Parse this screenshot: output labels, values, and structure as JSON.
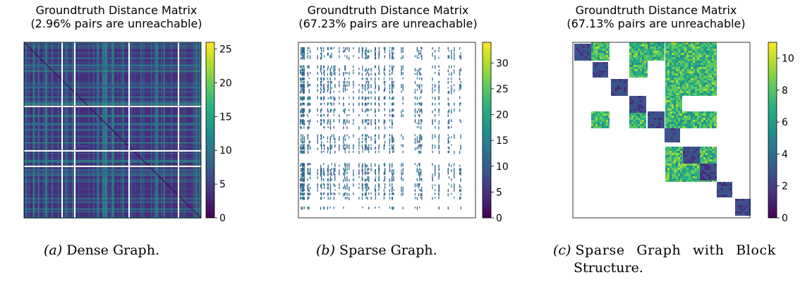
{
  "colormap": [
    "#440154",
    "#472d7b",
    "#3b528b",
    "#2c728e",
    "#21918c",
    "#28ae80",
    "#5ec962",
    "#addc30",
    "#fde725"
  ],
  "panels": [
    {
      "title_line1": "Groundtruth Distance Matrix",
      "title_line2": "(2.96% pairs are unreachable)",
      "caption_letter": "(a)",
      "caption_text": "Dense Graph.",
      "caption_text2": ""
    },
    {
      "title_line1": "Groundtruth Distance Matrix",
      "title_line2": "(67.23% pairs are unreachable)",
      "caption_letter": "(b)",
      "caption_text": "Sparse Graph.",
      "caption_text2": ""
    },
    {
      "title_line1": "Groundtruth Distance Matrix",
      "title_line2": "(67.13% pairs are unreachable)",
      "caption_letter": "(c)",
      "caption_text": "Sparse Graph with Block",
      "caption_text2": "Structure."
    }
  ],
  "chart_data": [
    {
      "type": "heatmap",
      "title": "Groundtruth Distance Matrix (2.96% pairs are unreachable)",
      "description_of_pattern": "dense matrix, mostly low distances (dark) with lighter teal/green horizontal and vertical stripes; a few white full-width/height lines mark unreachable nodes",
      "colorbar": {
        "min": 0,
        "max": 26,
        "ticks": [
          0,
          5,
          10,
          15,
          20,
          25
        ]
      },
      "unreachable_fraction_percent": 2.96
    },
    {
      "type": "heatmap",
      "title": "Groundtruth Distance Matrix (67.23% pairs are unreachable)",
      "description_of_pattern": "mostly white (unreachable) with scattered short mid-blue dashes concentrated toward the left and top",
      "colorbar": {
        "min": 0,
        "max": 34,
        "ticks": [
          0,
          5,
          10,
          15,
          20,
          25,
          30
        ]
      },
      "unreachable_fraction_percent": 67.23
    },
    {
      "type": "heatmap",
      "title": "Groundtruth Distance Matrix (67.13% pairs are unreachable)",
      "description_of_pattern": "block structure: dark blue blocks along the diagonal, green off-diagonal blocks, white elsewhere",
      "colorbar": {
        "min": 0,
        "max": 11,
        "ticks": [
          0,
          2,
          4,
          6,
          8,
          10
        ]
      },
      "unreachable_fraction_percent": 67.13
    }
  ]
}
